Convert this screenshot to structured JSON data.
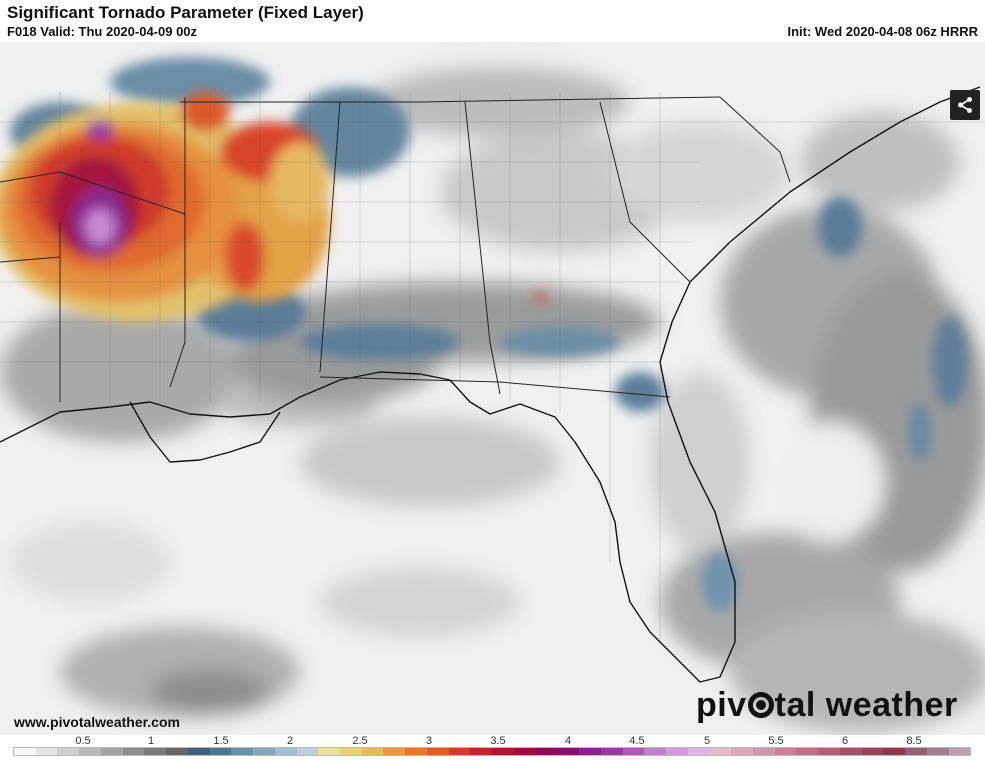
{
  "header": {
    "title": "Significant Tornado Parameter (Fixed Layer)",
    "valid": "F018 Valid: Thu 2020-04-09 00z",
    "init": "Init: Wed 2020-04-08 06z HRRR"
  },
  "map": {
    "region": "Southeastern United States",
    "share_icon": "share-icon",
    "site_url": "www.pivotalweather.com",
    "brand_left": "piv",
    "brand_right": "tal weather"
  },
  "legend": {
    "ticks": [
      "0.5",
      "1",
      "1.5",
      "2",
      "2.5",
      "3",
      "3.5",
      "4",
      "4.5",
      "5",
      "5.5",
      "6",
      "8.5"
    ],
    "colors": [
      "#f7f7f7",
      "#e4e4e4",
      "#cfcfcf",
      "#b9b9b9",
      "#a3a3a3",
      "#8e8e8e",
      "#7a7a7a",
      "#666666",
      "#3f5f7a",
      "#4f7591",
      "#6a8fa8",
      "#86a6bb",
      "#a3bece",
      "#bcd0dc",
      "#ece0a0",
      "#e8cf80",
      "#e6b862",
      "#e59a47",
      "#e27a35",
      "#dc5a2b",
      "#d33c2a",
      "#c4242a",
      "#b01830",
      "#9c0f3d",
      "#8a0d58",
      "#7d1170",
      "#88238a",
      "#9a3aa0",
      "#b05ab8",
      "#c37fcf",
      "#d39bdc",
      "#dfb5e6",
      "#e6bccb",
      "#dda8bb",
      "#d395ab",
      "#c9829a",
      "#bd7088",
      "#b05f77",
      "#a35167",
      "#974559",
      "#8a3a4c",
      "#8e6070",
      "#a08090",
      "#b8a0ad"
    ]
  }
}
